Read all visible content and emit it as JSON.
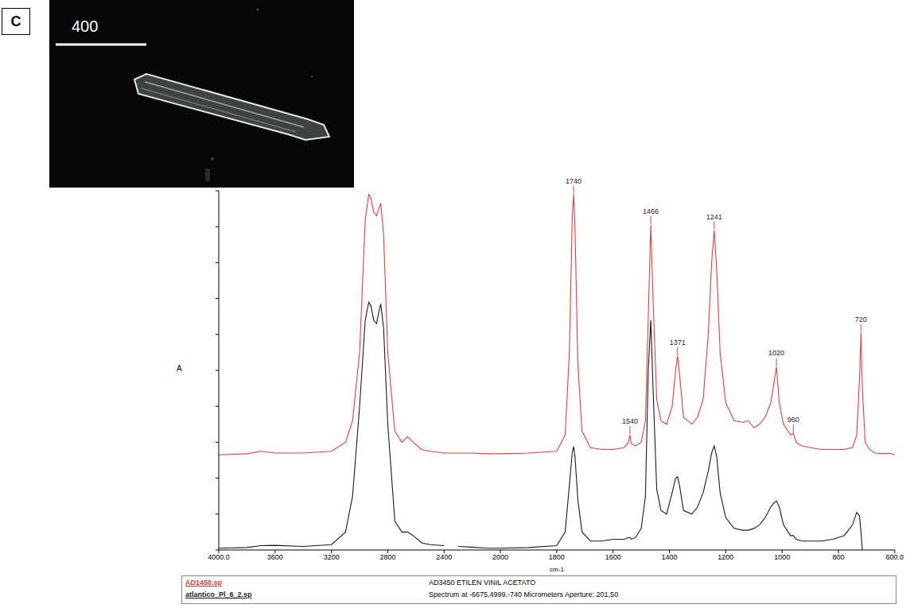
{
  "panel_label": "C",
  "photo": {
    "scale_bar": 400
  },
  "chart_data": {
    "type": "line",
    "x_label": "cm-1",
    "y_label": "A",
    "xlim": [
      4000,
      600
    ],
    "xticks": [
      {
        "value": 4000,
        "label": "4000.0"
      },
      3600,
      3200,
      2800,
      2400,
      2000,
      1800,
      1600,
      1400,
      1200,
      1000,
      800,
      {
        "value": 600,
        "label": "600.0"
      }
    ],
    "ylim": [
      0,
      100
    ],
    "yticks": [
      0,
      10,
      20,
      30,
      40,
      50,
      60,
      70,
      80,
      90,
      100
    ],
    "tick_labels": "x",
    "grid": false,
    "legend": "bottom",
    "x": [
      4000,
      3800,
      3700,
      3600,
      3400,
      3200,
      3100,
      3050,
      3000,
      2960,
      2935,
      2920,
      2900,
      2880,
      2865,
      2850,
      2830,
      2800,
      2750,
      2700,
      2660,
      2620,
      2560,
      2500,
      2400,
      2350,
      2300,
      2200,
      2100,
      2000,
      1900,
      1800,
      1770,
      1755,
      1745,
      1740,
      1735,
      1725,
      1710,
      1680,
      1640,
      1600,
      1560,
      1545,
      1540,
      1535,
      1520,
      1500,
      1485,
      1475,
      1466,
      1458,
      1445,
      1430,
      1410,
      1390,
      1378,
      1371,
      1364,
      1350,
      1320,
      1300,
      1280,
      1262,
      1250,
      1241,
      1232,
      1220,
      1200,
      1170,
      1140,
      1120,
      1100,
      1080,
      1060,
      1040,
      1030,
      1020,
      1010,
      995,
      970,
      960,
      950,
      930,
      900,
      860,
      820,
      780,
      750,
      735,
      725,
      720,
      715,
      705,
      690,
      670,
      640,
      620,
      600
    ],
    "series": [
      {
        "name": "AD1450.sp",
        "color": "#f03a3a",
        "values": [
          26.5,
          26.8,
          27.5,
          27,
          27,
          27.5,
          30,
          36,
          55,
          92,
          99,
          98,
          94,
          93,
          95,
          96.5,
          88,
          55,
          33,
          30,
          31.5,
          30,
          28,
          27.5,
          27,
          27,
          27,
          27,
          26.8,
          26.8,
          27,
          27.5,
          32,
          55,
          92,
          99,
          90,
          52,
          33,
          28.5,
          28,
          28,
          28.5,
          30,
          32,
          29.5,
          29,
          30,
          36,
          65,
          90.5,
          70,
          42,
          36,
          35,
          40,
          50,
          54,
          49,
          37,
          35,
          37,
          42,
          60,
          80,
          89,
          78,
          55,
          41,
          36,
          35.5,
          36,
          34,
          35,
          37,
          41,
          46,
          51,
          41,
          35,
          32,
          32.5,
          30,
          29,
          28.5,
          28,
          28,
          28,
          28.5,
          32,
          48,
          60.5,
          45,
          30,
          28,
          27,
          26.8,
          27,
          26.5
        ]
      },
      {
        "name": "atlantico_Pl_6_2.sp",
        "color": "#1a1a1a",
        "values": [
          0.5,
          0.7,
          1.2,
          1.3,
          1,
          1.5,
          5,
          15,
          40,
          64,
          69,
          68,
          64,
          63,
          66,
          68.5,
          62,
          35,
          8,
          5,
          5,
          4,
          2,
          1.5,
          1.2,
          null,
          1,
          0.8,
          0.5,
          0.5,
          0.7,
          1.2,
          5,
          18,
          27,
          28.8,
          26,
          14,
          5,
          2.5,
          2.5,
          3,
          3,
          3.5,
          3.5,
          3,
          3.5,
          6,
          15,
          50,
          64,
          45,
          17,
          11,
          10,
          16,
          20,
          20.4,
          18,
          11,
          10,
          12,
          16,
          22,
          27,
          29,
          26,
          16,
          9,
          6,
          5.5,
          5.5,
          6,
          7,
          9,
          12,
          13,
          13.7,
          12,
          7,
          4,
          4,
          3,
          2.5,
          2.5,
          2.5,
          3,
          4,
          7,
          10.5,
          9.5,
          5,
          0,
          null,
          null,
          null,
          null,
          null,
          null
        ]
      }
    ],
    "peak_labels": [
      1740,
      1466,
      1241,
      1371,
      1540,
      1020,
      960,
      720
    ],
    "legend_notes": [
      "AD3450 ETILEN VINIL ACETATO",
      "Spectrum at -6675,4999,-740 Micrometers  Aperture: 201,50"
    ]
  }
}
